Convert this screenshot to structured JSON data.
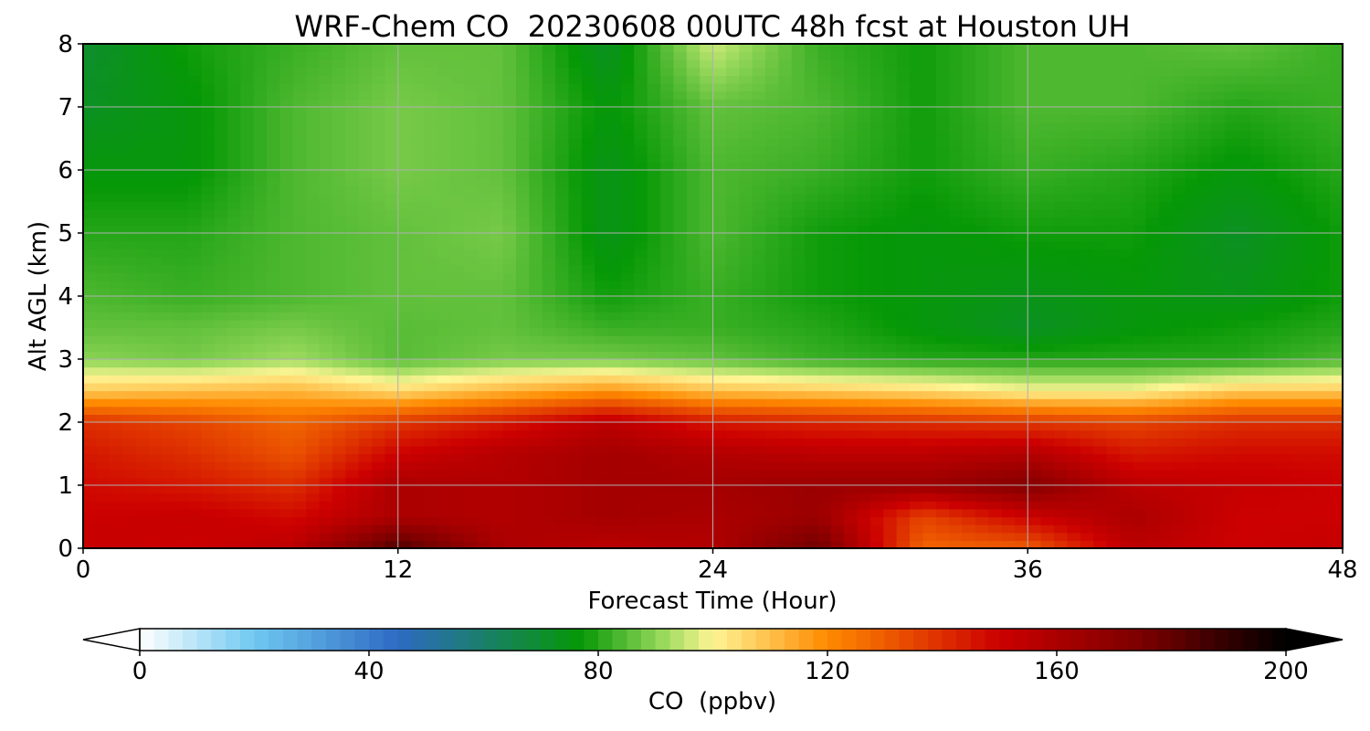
{
  "chart_data": {
    "type": "heatmap",
    "title": "WRF-Chem CO  20230608 00UTC 48h fcst at Houston UH",
    "xlabel": "Forecast Time (Hour)",
    "ylabel": "Alt AGL (km)",
    "xlim": [
      0,
      48
    ],
    "ylim": [
      0,
      8
    ],
    "xticks": [
      "0",
      "12",
      "24",
      "36",
      "48"
    ],
    "yticks": [
      "0",
      "1",
      "2",
      "3",
      "4",
      "5",
      "6",
      "7",
      "8"
    ],
    "grid": true,
    "x_hours": [
      0,
      4,
      8,
      12,
      16,
      20,
      24,
      28,
      32,
      36,
      40,
      44,
      48
    ],
    "y_km": [
      0,
      0.5,
      1,
      1.5,
      2,
      2.5,
      3,
      3.5,
      4,
      5,
      6,
      7,
      8
    ],
    "values_ppbv": [
      [
        152,
        150,
        155,
        185,
        160,
        155,
        158,
        178,
        128,
        130,
        155,
        150,
        152
      ],
      [
        150,
        152,
        148,
        160,
        158,
        162,
        160,
        165,
        135,
        150,
        160,
        150,
        150
      ],
      [
        148,
        145,
        140,
        160,
        158,
        162,
        162,
        165,
        165,
        172,
        155,
        152,
        150
      ],
      [
        145,
        140,
        132,
        150,
        157,
        162,
        158,
        155,
        155,
        158,
        145,
        148,
        148
      ],
      [
        140,
        135,
        128,
        138,
        145,
        155,
        145,
        142,
        140,
        138,
        135,
        140,
        140
      ],
      [
        108,
        110,
        112,
        105,
        112,
        118,
        110,
        108,
        105,
        100,
        100,
        108,
        108
      ],
      [
        90,
        88,
        92,
        85,
        88,
        88,
        86,
        82,
        80,
        80,
        80,
        80,
        84
      ],
      [
        86,
        86,
        88,
        85,
        86,
        82,
        82,
        80,
        76,
        72,
        76,
        78,
        80
      ],
      [
        84,
        82,
        84,
        86,
        86,
        78,
        82,
        78,
        76,
        74,
        76,
        74,
        78
      ],
      [
        80,
        80,
        84,
        86,
        88,
        74,
        84,
        78,
        76,
        78,
        78,
        72,
        78
      ],
      [
        76,
        76,
        84,
        88,
        86,
        74,
        84,
        82,
        78,
        82,
        80,
        76,
        80
      ],
      [
        72,
        76,
        84,
        88,
        86,
        76,
        86,
        84,
        78,
        84,
        84,
        80,
        82
      ],
      [
        70,
        78,
        82,
        86,
        86,
        72,
        96,
        82,
        78,
        84,
        84,
        86,
        82
      ]
    ],
    "colorbar": {
      "label": "CO  (ppbv)",
      "min": 0,
      "max": 200,
      "ticks": [
        "0",
        "40",
        "80",
        "120",
        "160",
        "200"
      ],
      "extend": "both",
      "stops": [
        {
          "v": 0,
          "c": "#ffffff"
        },
        {
          "v": 20,
          "c": "#6fc8f0"
        },
        {
          "v": 45,
          "c": "#2e6ac4"
        },
        {
          "v": 60,
          "c": "#1a7f6a"
        },
        {
          "v": 77,
          "c": "#069806"
        },
        {
          "v": 92,
          "c": "#a0dc60"
        },
        {
          "v": 100,
          "c": "#fff595"
        },
        {
          "v": 120,
          "c": "#ff8a00"
        },
        {
          "v": 150,
          "c": "#cc0000"
        },
        {
          "v": 175,
          "c": "#7a0000"
        },
        {
          "v": 200,
          "c": "#000000"
        }
      ]
    }
  }
}
